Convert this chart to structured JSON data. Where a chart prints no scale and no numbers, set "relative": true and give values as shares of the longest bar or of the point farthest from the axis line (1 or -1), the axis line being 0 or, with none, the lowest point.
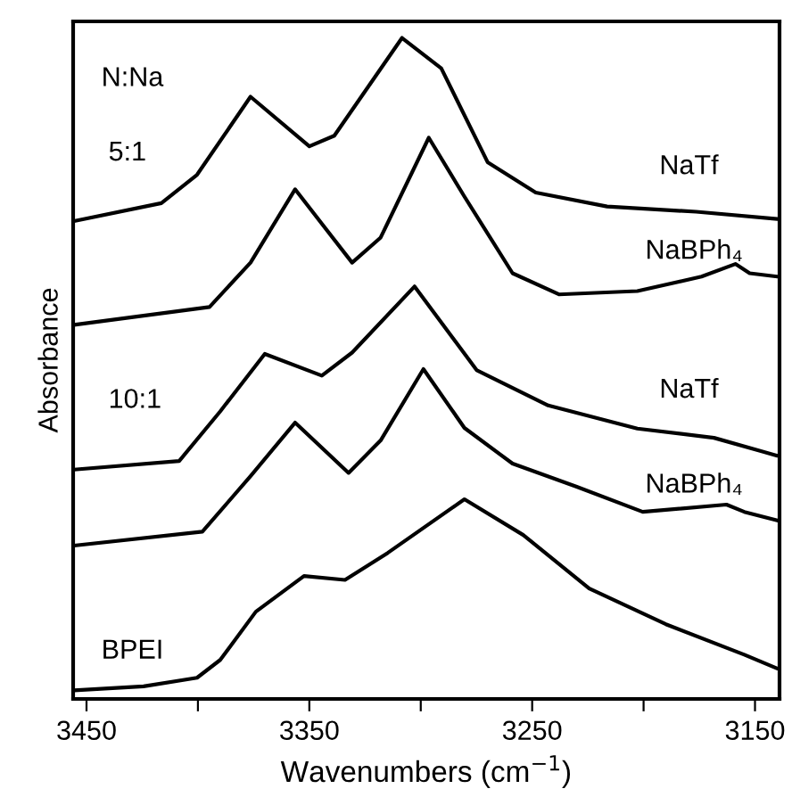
{
  "chart_data": {
    "type": "line",
    "xlabel": "Wavenumbers (cm$^{−1}$)",
    "ylabel": "Absorbance",
    "relative": true,
    "xlim": [
      3456,
      3139
    ],
    "xticks": [
      3450,
      {
        "value": 3400,
        "label": null
      },
      3350,
      {
        "value": 3300,
        "label": null
      },
      3250,
      {
        "value": 3200,
        "label": null
      },
      3150
    ],
    "series": [
      {
        "color": "#000000",
        "x": [
          3455.6,
          3416.4,
          3400.4,
          3376.4,
          3350,
          3338.8,
          3308.4,
          3290.8,
          3270,
          3248.4,
          3216.4,
          3176.4,
          3140
        ],
        "values": [
          0.723,
          0.75,
          0.793,
          0.911,
          0.836,
          0.852,
          1.0,
          0.954,
          0.812,
          0.766,
          0.745,
          0.737,
          0.726
        ]
      },
      {
        "color": "#000000",
        "x": [
          3455.6,
          3394.8,
          3376.4,
          3356.4,
          3330.8,
          3318,
          3296.4,
          3280.4,
          3258.8,
          3238,
          3202.8,
          3174,
          3158.8,
          3152.4,
          3140
        ],
        "values": [
          0.566,
          0.593,
          0.66,
          0.771,
          0.66,
          0.698,
          0.849,
          0.76,
          0.644,
          0.612,
          0.617,
          0.639,
          0.658,
          0.644,
          0.639
        ]
      },
      {
        "color": "#000000",
        "x": [
          3455.6,
          3408.4,
          3390,
          3370,
          3344.4,
          3330.8,
          3302.8,
          3274.8,
          3242.8,
          3202.8,
          3168.4,
          3140
        ],
        "values": [
          0.347,
          0.36,
          0.435,
          0.522,
          0.489,
          0.524,
          0.624,
          0.497,
          0.444,
          0.409,
          0.395,
          0.368
        ]
      },
      {
        "color": "#000000",
        "x": [
          3455.6,
          3398,
          3376.4,
          3356.4,
          3332.4,
          3318,
          3298.8,
          3280.4,
          3258.8,
          3230,
          3200.4,
          3162.8,
          3154.8,
          3140
        ],
        "values": [
          0.232,
          0.253,
          0.337,
          0.418,
          0.342,
          0.391,
          0.499,
          0.41,
          0.356,
          0.321,
          0.283,
          0.294,
          0.283,
          0.27
        ]
      },
      {
        "color": "#000000",
        "x": [
          3455.6,
          3424.4,
          3400.4,
          3390,
          3374,
          3352.4,
          3334,
          3314.8,
          3280.4,
          3254,
          3224.4,
          3190,
          3154.8,
          3140
        ],
        "values": [
          0.013,
          0.019,
          0.032,
          0.059,
          0.132,
          0.186,
          0.18,
          0.221,
          0.302,
          0.248,
          0.167,
          0.113,
          0.067,
          0.046
        ]
      }
    ],
    "annotations": [
      "N:Na",
      "5:1",
      "NaTf",
      "NaBPh₄",
      "10:1",
      "NaTf",
      "NaBPh₄",
      "BPEI"
    ]
  }
}
